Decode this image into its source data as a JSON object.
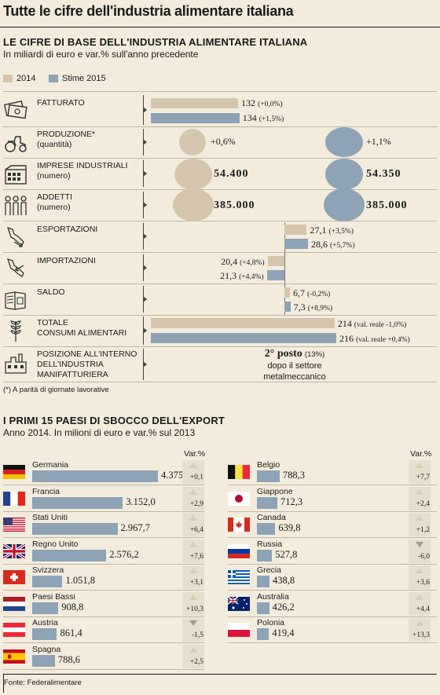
{
  "main_title": "Tutte le cifre dell'industria alimentare italiana",
  "section1": {
    "title": "LE CIFRE DI BASE DELL'INDUSTRIA ALIMENTARE ITALIANA",
    "subtitle": "In miliardi di euro e var.% sull'anno precedente",
    "legend": [
      {
        "name": "2014",
        "color": "#d4c6ae"
      },
      {
        "name": "Stime 2015",
        "color": "#8fa3b6"
      }
    ],
    "rows": [
      {
        "label1": "FATTURATO",
        "label2": "",
        "icon": "money-icon",
        "v2014": "132",
        "var2014": "(+0,0%)",
        "v2015": "134",
        "var2015": "(+1,5%)"
      },
      {
        "label1": "PRODUZIONE*",
        "label2": "(quantità)",
        "icon": "tractor-icon",
        "v2014": "+0,6%",
        "v2015": "+1,1%"
      },
      {
        "label1": "IMPRESE INDUSTRIALI",
        "label2": "(numero)",
        "icon": "factory-icon",
        "v2014": "54.400",
        "v2015": "54.350"
      },
      {
        "label1": "ADDETTI",
        "label2": "(numero)",
        "icon": "workers-icon",
        "v2014": "385.000",
        "v2015": "385.000"
      },
      {
        "label1": "ESPORTAZIONI",
        "label2": "",
        "icon": "export-icon",
        "v2014": "27,1",
        "var2014": "(+3,5%)",
        "v2015": "28,6",
        "var2015": "(+5,7%)"
      },
      {
        "label1": "IMPORTAZIONI",
        "label2": "",
        "icon": "import-icon",
        "v2014": "20,4",
        "var2014": "(+4,8%)",
        "v2015": "21,3",
        "var2015": "(+4,4%)"
      },
      {
        "label1": "SALDO",
        "label2": "",
        "icon": "balance-icon",
        "v2014": "6,7",
        "var2014": "(-0,2%)",
        "v2015": "7,3",
        "var2015": "(+8,9%)"
      },
      {
        "label1": "TOTALE",
        "label2": "CONSUMI ALIMENTARI",
        "icon": "wheat-icon",
        "v2014": "214",
        "var2014": "(val. reale -1,0%)",
        "v2015": "216",
        "var2015": "(val. reale +0,4%)"
      },
      {
        "label1": "POSIZIONE ALL'INTERNO",
        "label2": "DELL'INDUSTRIA",
        "label3": "MANIFATTURIERA",
        "icon": "industry-icon",
        "pos1": "2° posto",
        "pos1b": "(13%)",
        "pos2": "dopo il settore",
        "pos3": "metalmeccanico"
      }
    ],
    "note": "(*) A parità di giornate lavorative"
  },
  "section2": {
    "title": "I PRIMI 15 PAESI DI SBOCCO DELL'EXPORT",
    "subtitle": "Anno 2014. In milioni di euro e var.% sul 2013",
    "var_header": "Var.%"
  },
  "chart_data": [
    {
      "type": "bar",
      "title": "LE CIFRE DI BASE DELL'INDUSTRIA ALIMENTARE ITALIANA",
      "subtitle": "In miliardi di euro e var.% sull'anno precedente",
      "categories": [
        "FATTURATO",
        "ESPORTAZIONI",
        "IMPORTAZIONI",
        "SALDO",
        "TOTALE CONSUMI ALIMENTARI"
      ],
      "series": [
        {
          "name": "2014",
          "values": [
            132,
            27.1,
            20.4,
            6.7,
            214
          ]
        },
        {
          "name": "Stime 2015",
          "values": [
            134,
            28.6,
            21.3,
            7.3,
            216
          ]
        }
      ]
    },
    {
      "type": "bar",
      "title": "I PRIMI 15 PAESI DI SBOCCO DELL'EXPORT",
      "subtitle": "Anno 2014. In milioni di euro e var.% sul 2013",
      "categories": [
        "Germania",
        "Francia",
        "Stati Uniti",
        "Regno Unito",
        "Svizzera",
        "Paesi Bassi",
        "Austria",
        "Spagna",
        "Belgio",
        "Giappone",
        "Canada",
        "Russia",
        "Grecia",
        "Australia",
        "Polonia"
      ],
      "values": [
        4375.6,
        3152.0,
        2967.7,
        2576.2,
        1051.8,
        908.8,
        861.4,
        788.6,
        788.3,
        712.3,
        639.8,
        527.8,
        438.8,
        426.2,
        419.4
      ],
      "labels": [
        "4.375,6",
        "3.152,0",
        "2.967,7",
        "2.576,2",
        "1.051,8",
        "908,8",
        "861,4",
        "788,6",
        "788,3",
        "712,3",
        "639,8",
        "527,8",
        "438,8",
        "426,2",
        "419,4"
      ],
      "var": [
        "+0,1",
        "+2,9",
        "+6,4",
        "+7,6",
        "+3,1",
        "+10,3",
        "-1,5",
        "+2,5",
        "+7,7",
        "+2,4",
        "+1,2",
        "-6,0",
        "+3,6",
        "+4,4",
        "+13,3"
      ],
      "var_values": [
        0.1,
        2.9,
        6.4,
        7.6,
        3.1,
        10.3,
        -1.5,
        2.5,
        7.7,
        2.4,
        1.2,
        -6.0,
        3.6,
        4.4,
        13.3
      ]
    }
  ],
  "source": "Fonte: Federalimentare"
}
